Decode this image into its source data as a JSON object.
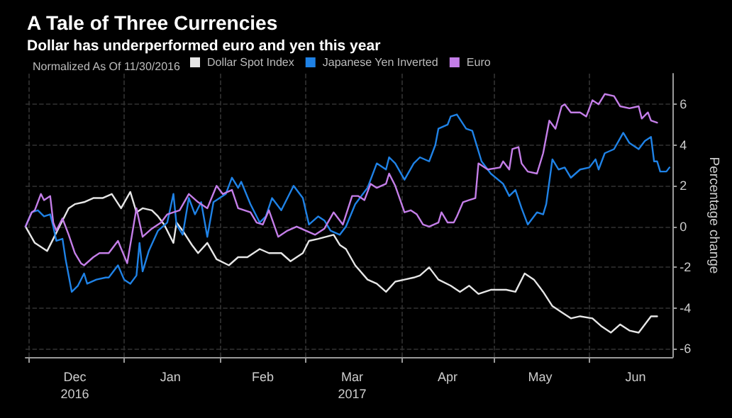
{
  "chart_data": {
    "type": "line",
    "title": "A Tale of Three Currencies",
    "subtitle": "Dollar has underperformed euro and yen this year",
    "legend_title": "Normalized As Of 11/30/2016",
    "ylabel": "Percentage change",
    "xlim": [
      "2016-11-30",
      "2017-06-28"
    ],
    "xticks": [
      {
        "value": "2016-12-01",
        "label": null
      },
      {
        "value": "2016-12-16",
        "label": "Dec\n2016"
      },
      {
        "value": "2017-01-01",
        "label": null
      },
      {
        "value": "2017-01-16",
        "label": "Jan"
      },
      {
        "value": "2017-02-01",
        "label": null
      },
      {
        "value": "2017-02-15",
        "label": "Feb"
      },
      {
        "value": "2017-03-01",
        "label": null
      },
      {
        "value": "2017-03-16",
        "label": "Mar\n2017"
      },
      {
        "value": "2017-04-01",
        "label": null
      },
      {
        "value": "2017-04-16",
        "label": "Apr"
      },
      {
        "value": "2017-05-01",
        "label": null
      },
      {
        "value": "2017-05-16",
        "label": "May"
      },
      {
        "value": "2017-06-01",
        "label": null
      },
      {
        "value": "2017-06-16",
        "label": "Jun"
      }
    ],
    "ylim": [
      -6.4,
      7.5
    ],
    "yticks": [
      -6,
      -4,
      -2,
      0,
      2,
      4,
      6
    ],
    "grid": true,
    "legend": "top left",
    "marker": "none",
    "line_style": "solid",
    "series": [
      {
        "name": "Dollar Spot Index",
        "color": "#e6e6e6",
        "x": [
          "2016-11-30",
          "2016-12-03",
          "2016-12-05",
          "2016-12-07",
          "2016-12-09",
          "2016-12-11",
          "2016-12-14",
          "2016-12-16",
          "2016-12-19",
          "2016-12-22",
          "2016-12-25",
          "2016-12-28",
          "2016-12-31",
          "2017-01-03",
          "2017-01-05",
          "2017-01-07",
          "2017-01-10",
          "2017-01-12",
          "2017-01-14",
          "2017-01-17",
          "2017-01-18",
          "2017-01-20",
          "2017-01-23",
          "2017-01-25",
          "2017-01-28",
          "2017-01-31",
          "2017-02-04",
          "2017-02-07",
          "2017-02-10",
          "2017-02-14",
          "2017-02-17",
          "2017-02-21",
          "2017-02-24",
          "2017-02-28",
          "2017-03-02",
          "2017-03-05",
          "2017-03-10",
          "2017-03-12",
          "2017-03-14",
          "2017-03-17",
          "2017-03-21",
          "2017-03-24",
          "2017-03-27",
          "2017-03-30",
          "2017-04-02",
          "2017-04-05",
          "2017-04-07",
          "2017-04-10",
          "2017-04-13",
          "2017-04-17",
          "2017-04-20",
          "2017-04-23",
          "2017-04-26",
          "2017-04-30",
          "2017-05-05",
          "2017-05-08",
          "2017-05-11",
          "2017-05-14",
          "2017-05-17",
          "2017-05-20",
          "2017-05-23",
          "2017-05-26",
          "2017-05-29",
          "2017-06-02",
          "2017-06-05",
          "2017-06-08",
          "2017-06-11",
          "2017-06-14",
          "2017-06-17",
          "2017-06-19",
          "2017-06-21",
          "2017-06-23"
        ],
        "values": [
          0,
          -0.8,
          -1.0,
          -1.2,
          -0.6,
          0,
          0.9,
          1.1,
          1.2,
          1.4,
          1.4,
          1.6,
          0.9,
          1.7,
          0.7,
          0.9,
          0.8,
          0.5,
          0.1,
          -0.8,
          0.2,
          -0.2,
          -0.9,
          -1.3,
          -0.8,
          -1.6,
          -1.9,
          -1.5,
          -1.5,
          -1.1,
          -1.3,
          -1.3,
          -1.7,
          -1.3,
          -0.7,
          -0.6,
          -0.4,
          -0.9,
          -1.1,
          -1.9,
          -2.6,
          -2.8,
          -3.2,
          -2.7,
          -2.6,
          -2.5,
          -2.4,
          -2.0,
          -2.6,
          -2.9,
          -3.2,
          -2.9,
          -3.3,
          -3.1,
          -3.1,
          -3.2,
          -2.3,
          -2.6,
          -3.2,
          -3.9,
          -4.2,
          -4.5,
          -4.4,
          -4.5,
          -4.9,
          -5.2,
          -4.8,
          -5.1,
          -5.2,
          -4.8,
          -4.4,
          -4.4
        ]
      },
      {
        "name": "Japanese Yen Inverted",
        "color": "#1f82e6",
        "x": [
          "2016-11-30",
          "2016-12-02",
          "2016-12-04",
          "2016-12-06",
          "2016-12-08",
          "2016-12-09",
          "2016-12-10",
          "2016-12-12",
          "2016-12-13",
          "2016-12-15",
          "2016-12-17",
          "2016-12-19",
          "2016-12-20",
          "2016-12-23",
          "2016-12-26",
          "2016-12-27",
          "2016-12-30",
          "2017-01-01",
          "2017-01-03",
          "2017-01-05",
          "2017-01-06",
          "2017-01-07",
          "2017-01-09",
          "2017-01-12",
          "2017-01-15",
          "2017-01-17",
          "2017-01-18",
          "2017-01-20",
          "2017-01-22",
          "2017-01-24",
          "2017-01-26",
          "2017-01-28",
          "2017-01-30",
          "2017-02-01",
          "2017-02-03",
          "2017-02-05",
          "2017-02-07",
          "2017-02-08",
          "2017-02-11",
          "2017-02-14",
          "2017-02-16",
          "2017-02-18",
          "2017-02-21",
          "2017-02-25",
          "2017-02-28",
          "2017-03-02",
          "2017-03-05",
          "2017-03-07",
          "2017-03-09",
          "2017-03-12",
          "2017-03-14",
          "2017-03-17",
          "2017-03-21",
          "2017-03-24",
          "2017-03-27",
          "2017-03-28",
          "2017-03-30",
          "2017-04-02",
          "2017-04-05",
          "2017-04-07",
          "2017-04-10",
          "2017-04-12",
          "2017-04-13",
          "2017-04-16",
          "2017-04-17",
          "2017-04-19",
          "2017-04-22",
          "2017-04-24",
          "2017-04-27",
          "2017-04-30",
          "2017-05-04",
          "2017-05-06",
          "2017-05-08",
          "2017-05-10",
          "2017-05-12",
          "2017-05-15",
          "2017-05-17",
          "2017-05-18",
          "2017-05-20",
          "2017-05-22",
          "2017-05-24",
          "2017-05-26",
          "2017-05-29",
          "2017-06-01",
          "2017-06-03",
          "2017-06-04",
          "2017-06-06",
          "2017-06-09",
          "2017-06-12",
          "2017-06-14",
          "2017-06-17",
          "2017-06-19",
          "2017-06-21",
          "2017-06-22",
          "2017-06-23",
          "2017-06-24",
          "2017-06-26",
          "2017-06-27"
        ],
        "values": [
          0,
          0.7,
          0.8,
          0.5,
          0.6,
          0,
          -0.7,
          -0.6,
          -1.6,
          -3.2,
          -2.9,
          -2.3,
          -2.8,
          -2.6,
          -2.5,
          -2.5,
          -1.9,
          -2.6,
          -2.8,
          -2.4,
          -0.8,
          -2.2,
          -1.2,
          -0.2,
          0.2,
          1.6,
          0.1,
          -0.4,
          1.4,
          0.6,
          1.2,
          -0.5,
          1.2,
          1.4,
          1.6,
          2.4,
          1.9,
          2.2,
          1.1,
          0.2,
          0.5,
          1.4,
          0.8,
          2.0,
          1.4,
          0.1,
          0.5,
          0.3,
          -0.2,
          -0.4,
          0,
          1.1,
          1.9,
          3.1,
          2.8,
          3.4,
          3.1,
          2.3,
          3.1,
          3.4,
          3.2,
          4.0,
          4.8,
          5.0,
          5.4,
          5.5,
          4.8,
          4.7,
          3.2,
          2.6,
          2.1,
          1.5,
          1.8,
          0.9,
          0.1,
          0.7,
          0.6,
          1.1,
          3.3,
          2.8,
          2.9,
          2.4,
          2.8,
          2.9,
          3.3,
          2.8,
          3.6,
          3.8,
          4.6,
          4.1,
          3.8,
          4.2,
          4.4,
          3.2,
          3.2,
          2.7,
          2.7,
          2.9
        ]
      },
      {
        "name": "Euro",
        "color": "#c47ee8",
        "x": [
          "2016-11-30",
          "2016-12-02",
          "2016-12-03",
          "2016-12-05",
          "2016-12-06",
          "2016-12-08",
          "2016-12-09",
          "2016-12-10",
          "2016-12-12",
          "2016-12-14",
          "2016-12-16",
          "2016-12-18",
          "2016-12-19",
          "2016-12-22",
          "2016-12-24",
          "2016-12-27",
          "2016-12-30",
          "2017-01-02",
          "2017-01-04",
          "2017-01-05",
          "2017-01-07",
          "2017-01-10",
          "2017-01-13",
          "2017-01-15",
          "2017-01-17",
          "2017-01-19",
          "2017-01-22",
          "2017-01-25",
          "2017-01-28",
          "2017-01-31",
          "2017-02-02",
          "2017-02-05",
          "2017-02-07",
          "2017-02-11",
          "2017-02-13",
          "2017-02-15",
          "2017-02-17",
          "2017-02-20",
          "2017-02-23",
          "2017-02-26",
          "2017-03-01",
          "2017-03-04",
          "2017-03-07",
          "2017-03-10",
          "2017-03-13",
          "2017-03-16",
          "2017-03-18",
          "2017-03-20",
          "2017-03-22",
          "2017-03-24",
          "2017-03-27",
          "2017-03-28",
          "2017-03-30",
          "2017-04-02",
          "2017-04-04",
          "2017-04-06",
          "2017-04-08",
          "2017-04-10",
          "2017-04-13",
          "2017-04-14",
          "2017-04-16",
          "2017-04-18",
          "2017-04-19",
          "2017-04-21",
          "2017-04-23",
          "2017-04-25",
          "2017-04-26",
          "2017-04-29",
          "2017-05-03",
          "2017-05-04",
          "2017-05-06",
          "2017-05-07",
          "2017-05-09",
          "2017-05-10",
          "2017-05-12",
          "2017-05-15",
          "2017-05-17",
          "2017-05-19",
          "2017-05-21",
          "2017-05-23",
          "2017-05-24",
          "2017-05-26",
          "2017-05-29",
          "2017-05-31",
          "2017-06-02",
          "2017-06-04",
          "2017-06-06",
          "2017-06-09",
          "2017-06-11",
          "2017-06-14",
          "2017-06-17",
          "2017-06-18",
          "2017-06-20",
          "2017-06-21",
          "2017-06-23"
        ],
        "values": [
          0,
          0.7,
          0.8,
          1.6,
          1.3,
          1.5,
          0.2,
          -0.2,
          0.4,
          -0.4,
          -1.3,
          -1.8,
          -1.9,
          -1.5,
          -1.3,
          -1.3,
          -0.7,
          -1.8,
          0,
          0.9,
          -0.5,
          -0.1,
          0.2,
          0.6,
          0.7,
          0.8,
          1.6,
          1.2,
          0.9,
          2.0,
          1.6,
          1.8,
          0.9,
          0.7,
          0.2,
          0.1,
          0.8,
          -0.5,
          -0.2,
          0,
          -0.2,
          -0.4,
          -0.1,
          0.7,
          0.1,
          1.5,
          1.5,
          1.3,
          2.1,
          1.9,
          2.1,
          2.6,
          2.0,
          0.7,
          0.8,
          0.6,
          0.1,
          0,
          0.2,
          0.7,
          0.2,
          0.2,
          0.5,
          1.2,
          1.3,
          1.4,
          3.1,
          2.8,
          2.9,
          3.2,
          2.8,
          3.8,
          3.9,
          3.1,
          2.7,
          2.6,
          3.6,
          5.2,
          4.8,
          5.9,
          6.0,
          5.6,
          5.6,
          5.4,
          6.2,
          6.0,
          6.5,
          6.4,
          5.9,
          5.8,
          5.9,
          5.3,
          5.6,
          5.2,
          5.1
        ]
      }
    ]
  }
}
